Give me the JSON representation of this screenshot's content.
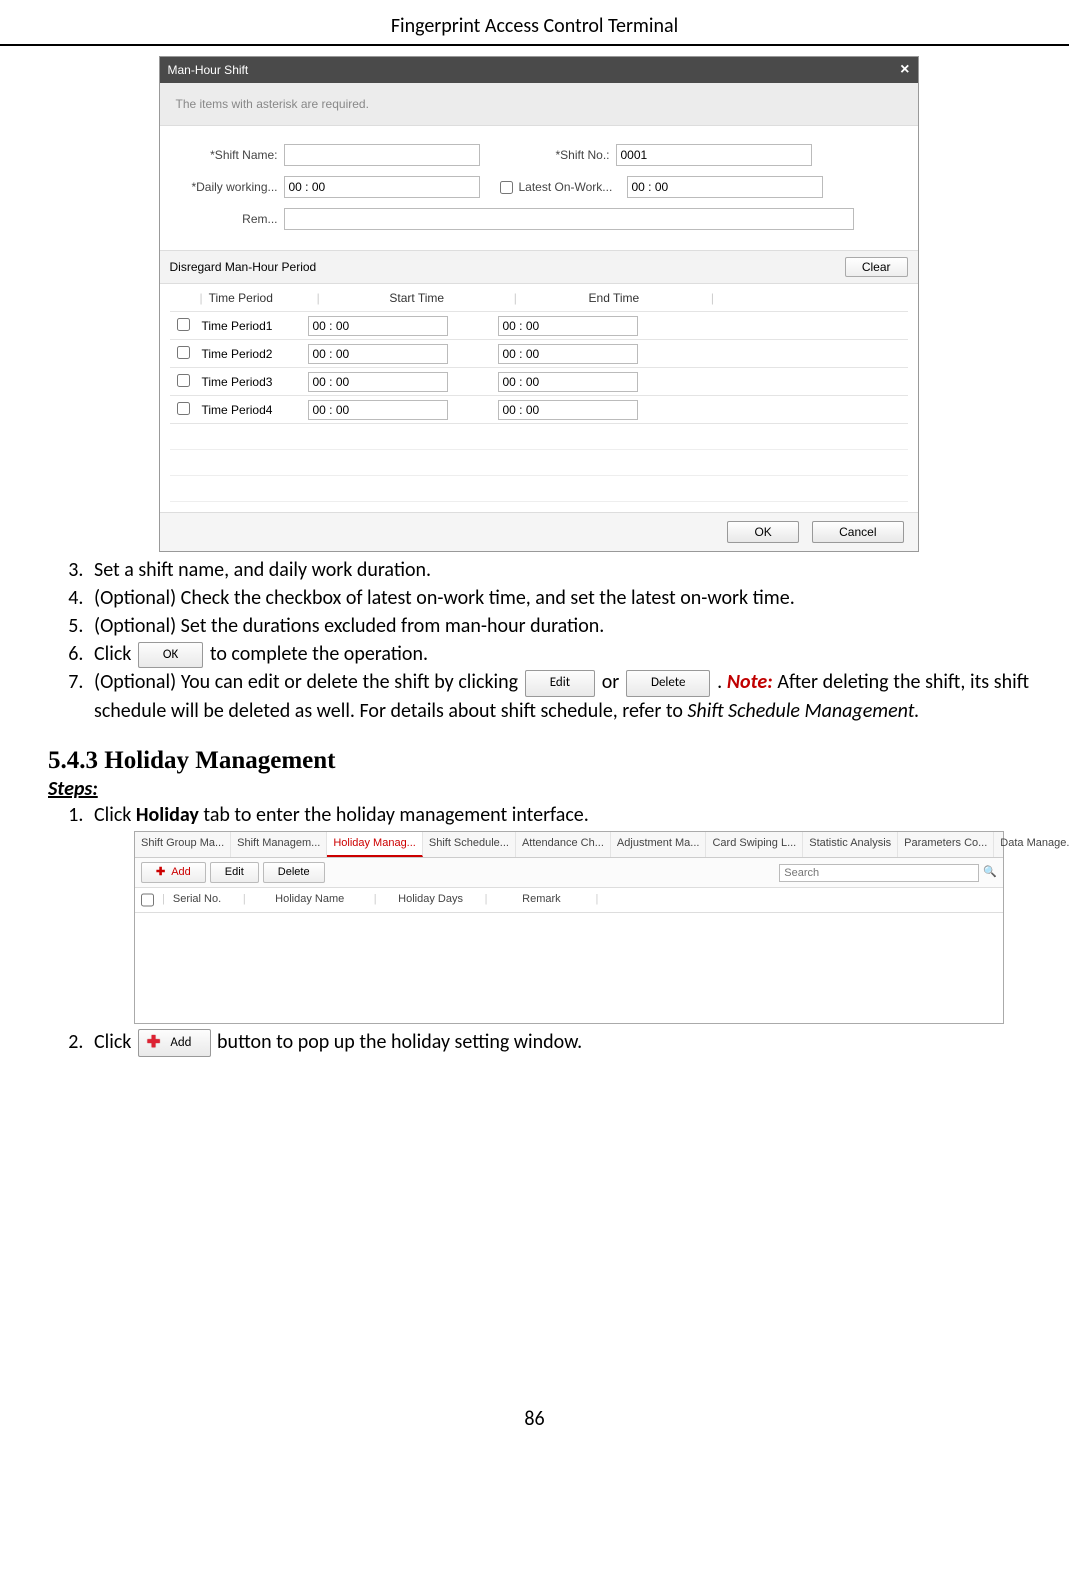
{
  "page": {
    "header": "Fingerprint Access Control Terminal",
    "number": "86"
  },
  "dialog1": {
    "title": "Man-Hour Shift",
    "close": "×",
    "banner": "The items with asterisk are required.",
    "labels": {
      "shift_name": "*Shift Name:",
      "shift_no": "*Shift No.:",
      "daily_working": "*Daily working...",
      "latest_onwork": "Latest On-Work...",
      "rem": "Rem..."
    },
    "values": {
      "shift_name": "",
      "shift_no": "0001",
      "daily_working": "00 : 00",
      "latest_onwork": "00 : 00",
      "rem": ""
    },
    "section_title": "Disregard Man-Hour Period",
    "clear_btn": "Clear",
    "columns": {
      "tp": "Time Period",
      "st": "Start Time",
      "et": "End Time"
    },
    "rows": [
      {
        "tp": "Time Period1",
        "st": "00 : 00",
        "et": "00 : 00"
      },
      {
        "tp": "Time Period2",
        "st": "00 : 00",
        "et": "00 : 00"
      },
      {
        "tp": "Time Period3",
        "st": "00 : 00",
        "et": "00 : 00"
      },
      {
        "tp": "Time Period4",
        "st": "00 : 00",
        "et": "00 : 00"
      }
    ],
    "ok": "OK",
    "cancel": "Cancel"
  },
  "steps_a": {
    "s3": "Set a shift name, and daily work duration.",
    "s4": "(Optional) Check the checkbox of latest on-work time, and set the latest on-work time.",
    "s5": "(Optional) Set the durations excluded from man-hour duration.",
    "s6a": "Click ",
    "s6b": " to complete the operation.",
    "s7a": "(Optional) You can edit or delete the shift by clicking ",
    "s7b": " or ",
    "s7c": ". ",
    "s7note": "Note:",
    "s7d": " After deleting the shift, its shift schedule will be deleted as well. For details about shift schedule, refer to ",
    "s7e": "Shift Schedule Management."
  },
  "buttons": {
    "ok": "OK",
    "edit": "Edit",
    "delete": "Delete",
    "add": "Add"
  },
  "section": {
    "num_title": "5.4.3   Holiday Management",
    "steps_hdr": "Steps:"
  },
  "steps_b": {
    "s1a": "Click ",
    "s1bold": "Holiday",
    "s1b": " tab to enter the holiday management interface.",
    "s2a": "Click ",
    "s2b": " button to pop up the holiday setting window."
  },
  "dialog2": {
    "tabs": [
      "Shift Group Ma...",
      "Shift Managem...",
      "Holiday Manag...",
      "Shift Schedule...",
      "Attendance Ch...",
      "Adjustment Ma...",
      "Card Swiping L...",
      "Statistic Analysis",
      "Parameters Co...",
      "Data Manage..."
    ],
    "active_tab_index": 2,
    "toolbar": {
      "add": "Add",
      "edit": "Edit",
      "delete": "Delete",
      "search_placeholder": "Search"
    },
    "columns": [
      "Serial No.",
      "Holiday Name",
      "Holiday Days",
      "Remark"
    ]
  }
}
